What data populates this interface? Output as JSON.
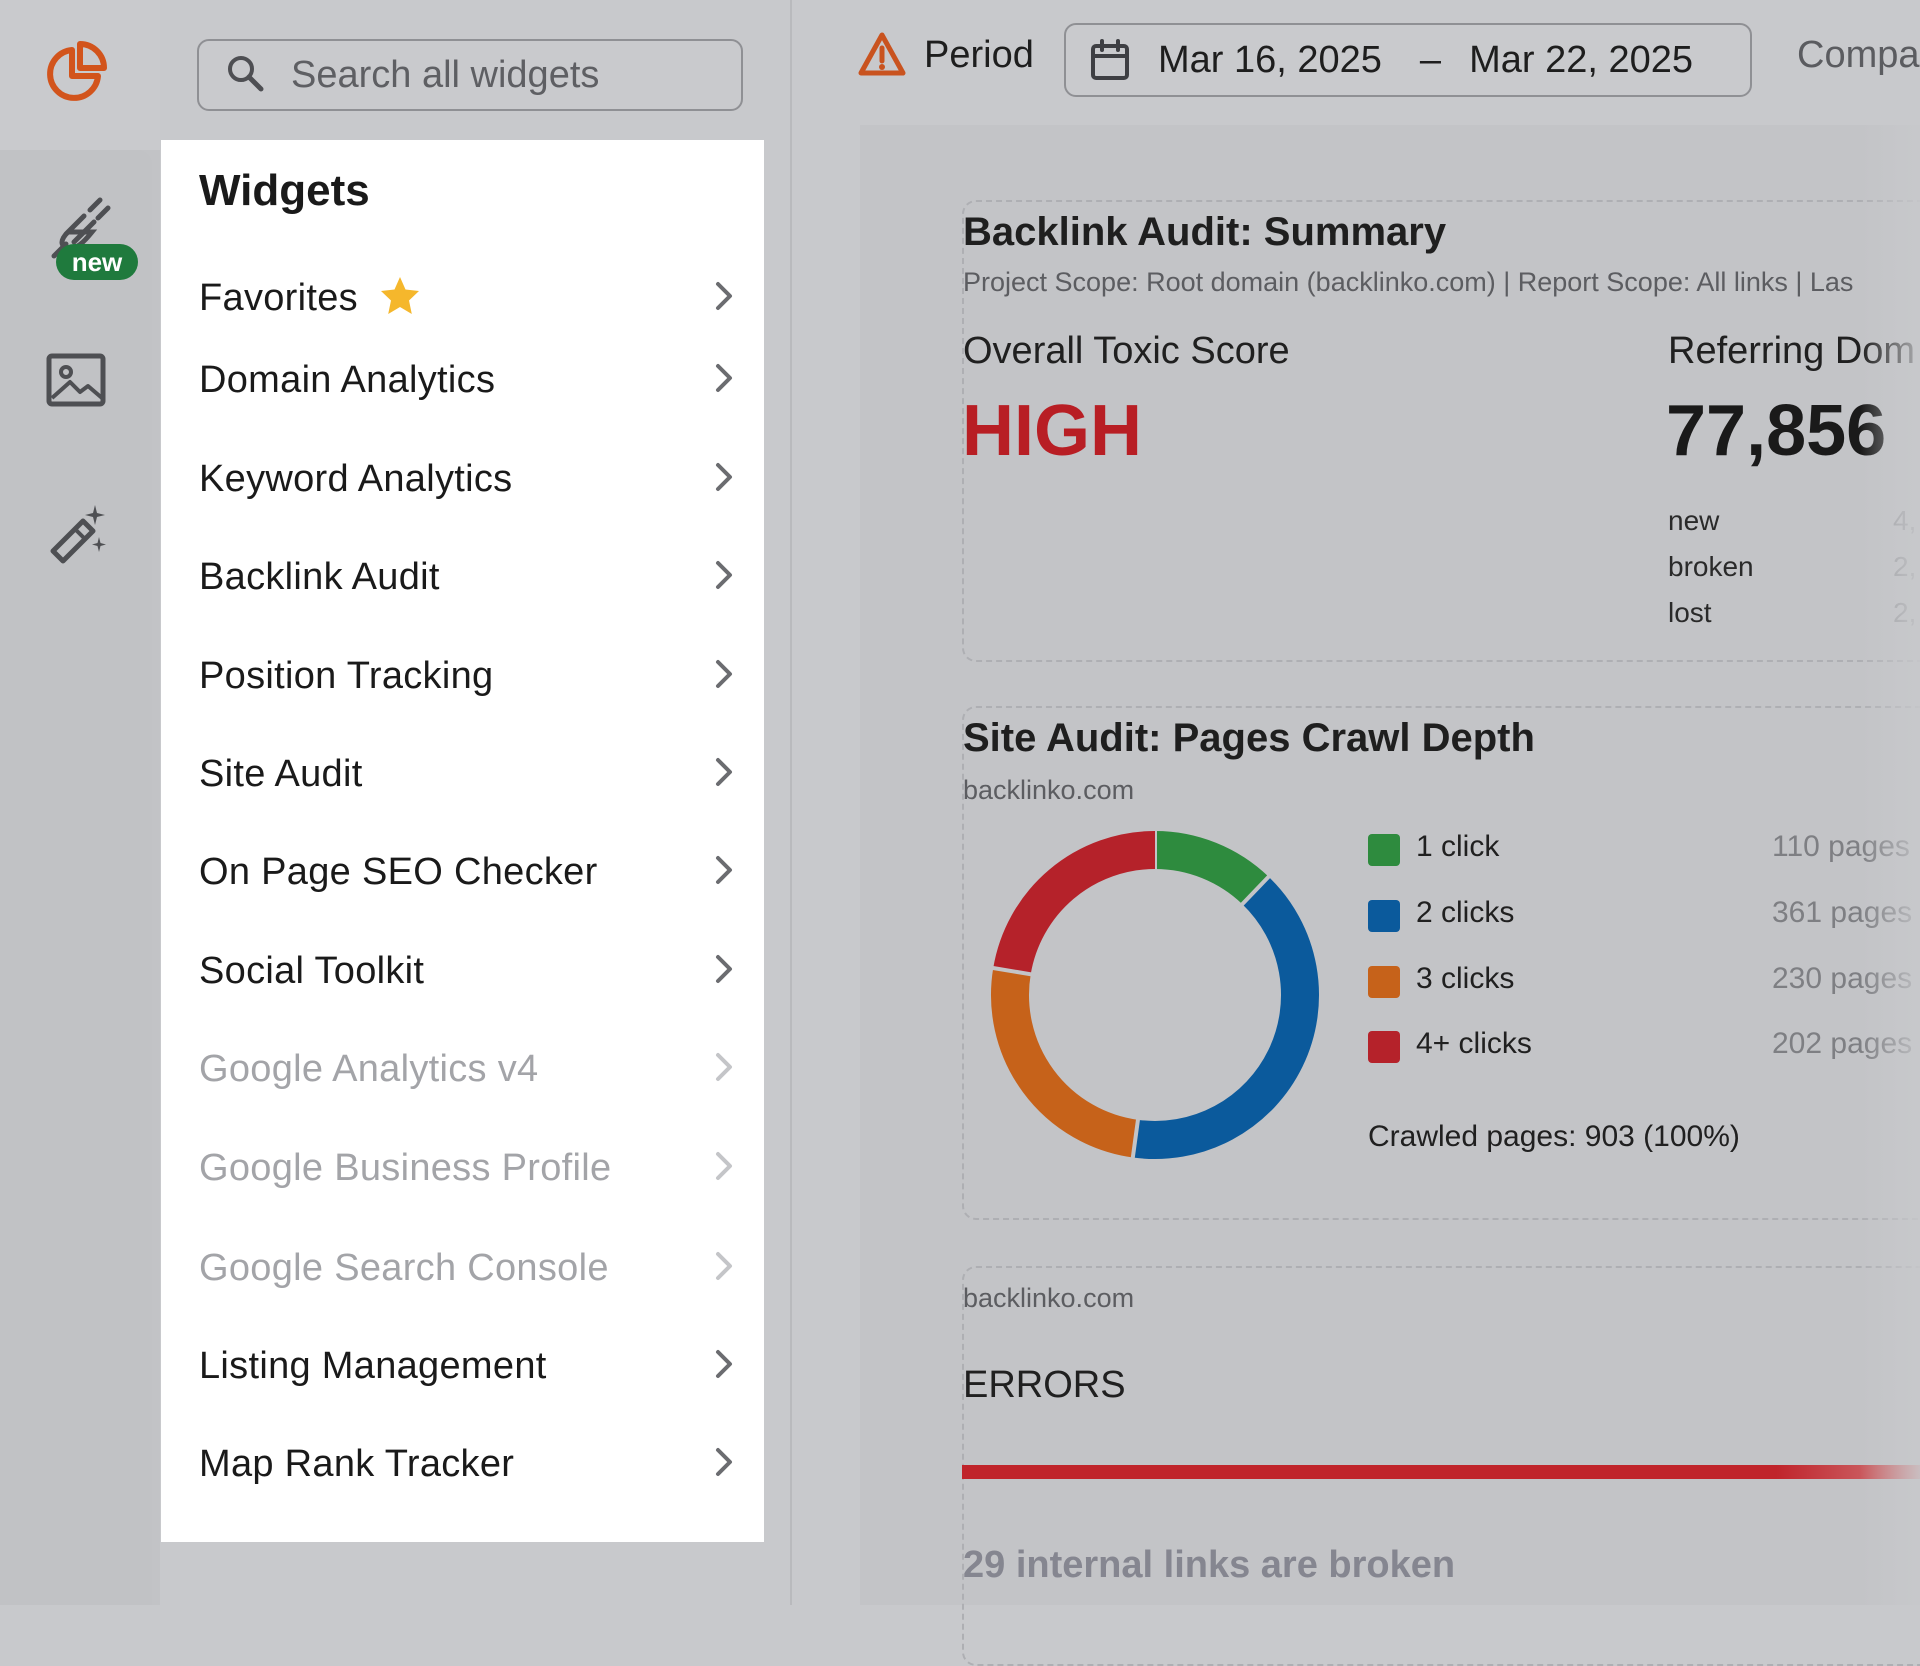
{
  "search": {
    "placeholder": "Search all widgets"
  },
  "rail": {
    "new_badge": "new",
    "icons": [
      "logo-pie-icon",
      "plug-icon",
      "image-icon",
      "magic-wand-icon"
    ]
  },
  "widgets_panel": {
    "title": "Widgets",
    "items": [
      {
        "label": "Favorites",
        "enabled": true,
        "starred": true
      },
      {
        "label": "Domain Analytics",
        "enabled": true
      },
      {
        "label": "Keyword Analytics",
        "enabled": true
      },
      {
        "label": "Backlink Audit",
        "enabled": true
      },
      {
        "label": "Position Tracking",
        "enabled": true
      },
      {
        "label": "Site Audit",
        "enabled": true
      },
      {
        "label": "On Page SEO Checker",
        "enabled": true
      },
      {
        "label": "Social Toolkit",
        "enabled": true
      },
      {
        "label": "Google Analytics v4",
        "enabled": false
      },
      {
        "label": "Google Business Profile",
        "enabled": false
      },
      {
        "label": "Google Search Console",
        "enabled": false
      },
      {
        "label": "Listing Management",
        "enabled": true
      },
      {
        "label": "Map Rank Tracker",
        "enabled": true
      }
    ]
  },
  "topbar": {
    "period_label": "Period",
    "date_start": "Mar 16, 2025",
    "date_sep": "–",
    "date_end": "Mar 22, 2025",
    "compare_label": "Compa"
  },
  "backlink_card": {
    "title": "Backlink Audit: Summary",
    "subtitle": "Project Scope: Root domain (backlinko.com) | Report Scope: All links | Las",
    "toxic_label": "Overall Toxic Score",
    "toxic_value": "HIGH",
    "ref_label": "Referring Dom",
    "ref_value": "77,856",
    "rows": [
      {
        "label": "new",
        "value": "4,"
      },
      {
        "label": "broken",
        "value": "2,"
      },
      {
        "label": "lost",
        "value": "2,"
      }
    ]
  },
  "site_audit_card": {
    "title": "Site Audit: Pages Crawl Depth",
    "domain": "backlinko.com",
    "total": "Crawled pages: 903 (100%)"
  },
  "errors_card": {
    "domain": "backlinko.com",
    "heading": "ERRORS",
    "message": "29 internal links are broken"
  },
  "colors": {
    "green": "#2e8b3e",
    "blue": "#0b5a9c",
    "orange": "#c6621a",
    "red": "#b5222a",
    "toxic": "#b81e24",
    "logo": "#d2541c"
  },
  "chart_data": {
    "type": "pie",
    "donut": true,
    "categories": [
      "1 click",
      "2 clicks",
      "3 clicks",
      "4+ clicks"
    ],
    "values": [
      110,
      361,
      230,
      202
    ],
    "value_labels": [
      "110 pages",
      "361 pages",
      "230 pages",
      "202 pages"
    ],
    "colors": [
      "#2e8b3e",
      "#0b5a9c",
      "#c6621a",
      "#b5222a"
    ]
  }
}
